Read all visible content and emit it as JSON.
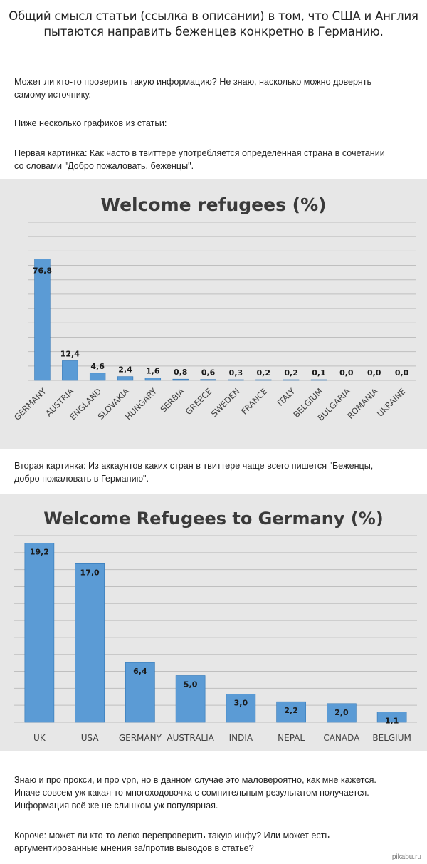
{
  "post": {
    "title_line1": "Общий смысл статьи (ссылка в описании) в том, что США и Англия",
    "title_line2": "пытаются направить беженцев конкретно в Германию.",
    "p1_line1": "Может ли кто-то проверить такую информацию? Не знаю, насколько можно доверять",
    "p1_line2": "самому источнику.",
    "p2": "Ниже несколько графиков из статьи:",
    "p3_line1": "Первая картинка: Как часто в твиттере употребляется определённая страна в сочетании",
    "p3_line2": "со словами \"Добро пожаловать, беженцы\".",
    "p4_line1": "Вторая картинка: Из аккаунтов каких стран в твиттере чаще всего пишется \"Беженцы,",
    "p4_line2": "добро пожаловать в Германию\".",
    "p5_line1": "Знаю и про прокси, и про vpn, но в данном случае это маловероятно, как мне кажется.",
    "p5_line2": "Иначе совсем уж какая-то многоходовочка с сомнительным результатом получается.",
    "p5_line3": "Информация всё же не слишком уж популярная.",
    "p6_line1": "Короче: может ли кто-то легко перепроверить такую инфу? Или может есть",
    "p6_line2": "аргументированные мнения за/против выводов в статье?",
    "watermark": "pikabu.ru"
  },
  "colors": {
    "bar": "#5b9bd5",
    "bar_edge": "#2e75b6",
    "bg": "#e7e7e7",
    "grid": "#bfbfbf"
  },
  "chart_data": [
    {
      "type": "bar",
      "title": "Welcome refugees (%)",
      "categories": [
        "GERMANY",
        "AUSTRIA",
        "ENGLAND",
        "SLOVAKIA",
        "HUNGARY",
        "SERBIA",
        "GREECE",
        "SWEDEN",
        "FRANCE",
        "ITALY",
        "BELGIUM",
        "BULGARIA",
        "ROMANIA",
        "UKRAINE"
      ],
      "values": [
        76.8,
        12.4,
        4.6,
        2.4,
        1.6,
        0.8,
        0.6,
        0.3,
        0.2,
        0.2,
        0.1,
        0.0,
        0.0,
        0.0
      ],
      "labels": [
        "76,8",
        "12,4",
        "4,6",
        "2,4",
        "1,6",
        "0,8",
        "0,6",
        "0,3",
        "0,2",
        "0,2",
        "0,1",
        "0,0",
        "0,0",
        "0,0"
      ],
      "ylim": [
        0,
        100
      ],
      "grid": true,
      "xlabel": "",
      "ylabel": ""
    },
    {
      "type": "bar",
      "title": "Welcome Refugees to Germany (%)",
      "categories": [
        "UK",
        "USA",
        "GERMANY",
        "AUSTRALIA",
        "INDIA",
        "NEPAL",
        "CANADA",
        "BELGIUM"
      ],
      "values": [
        19.2,
        17.0,
        6.4,
        5.0,
        3.0,
        2.2,
        2.0,
        1.1
      ],
      "labels": [
        "19,2",
        "17,0",
        "6,4",
        "5,0",
        "3,0",
        "2,2",
        "2,0",
        "1,1"
      ],
      "ylim": [
        0,
        20
      ],
      "grid": true,
      "xlabel": "",
      "ylabel": ""
    }
  ]
}
